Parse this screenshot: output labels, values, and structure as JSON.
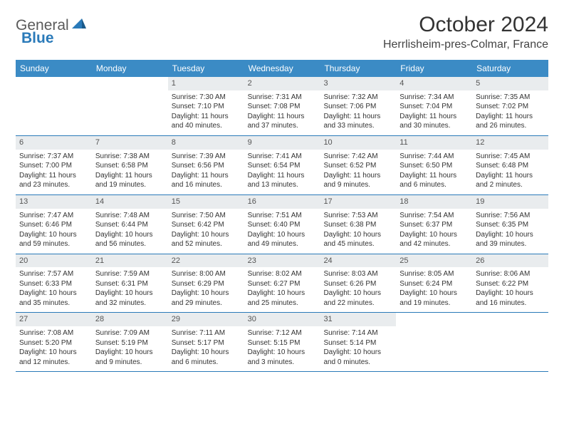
{
  "brand": {
    "part1": "General",
    "part2": "Blue"
  },
  "title": "October 2024",
  "location": "Herrlisheim-pres-Colmar, France",
  "weekdays": [
    "Sunday",
    "Monday",
    "Tuesday",
    "Wednesday",
    "Thursday",
    "Friday",
    "Saturday"
  ],
  "colors": {
    "header_bg": "#3b8bc5",
    "week_divider": "#2a7ab9",
    "daynum_bg": "#e9ecee",
    "text": "#333333"
  },
  "typography": {
    "title_fontsize": 30,
    "location_fontsize": 16,
    "weekday_fontsize": 12,
    "cell_fontsize": 10
  },
  "weeks": [
    [
      {
        "empty": true
      },
      {
        "empty": true
      },
      {
        "day": "1",
        "sunrise": "Sunrise: 7:30 AM",
        "sunset": "Sunset: 7:10 PM",
        "daylight1": "Daylight: 11 hours",
        "daylight2": "and 40 minutes."
      },
      {
        "day": "2",
        "sunrise": "Sunrise: 7:31 AM",
        "sunset": "Sunset: 7:08 PM",
        "daylight1": "Daylight: 11 hours",
        "daylight2": "and 37 minutes."
      },
      {
        "day": "3",
        "sunrise": "Sunrise: 7:32 AM",
        "sunset": "Sunset: 7:06 PM",
        "daylight1": "Daylight: 11 hours",
        "daylight2": "and 33 minutes."
      },
      {
        "day": "4",
        "sunrise": "Sunrise: 7:34 AM",
        "sunset": "Sunset: 7:04 PM",
        "daylight1": "Daylight: 11 hours",
        "daylight2": "and 30 minutes."
      },
      {
        "day": "5",
        "sunrise": "Sunrise: 7:35 AM",
        "sunset": "Sunset: 7:02 PM",
        "daylight1": "Daylight: 11 hours",
        "daylight2": "and 26 minutes."
      }
    ],
    [
      {
        "day": "6",
        "sunrise": "Sunrise: 7:37 AM",
        "sunset": "Sunset: 7:00 PM",
        "daylight1": "Daylight: 11 hours",
        "daylight2": "and 23 minutes."
      },
      {
        "day": "7",
        "sunrise": "Sunrise: 7:38 AM",
        "sunset": "Sunset: 6:58 PM",
        "daylight1": "Daylight: 11 hours",
        "daylight2": "and 19 minutes."
      },
      {
        "day": "8",
        "sunrise": "Sunrise: 7:39 AM",
        "sunset": "Sunset: 6:56 PM",
        "daylight1": "Daylight: 11 hours",
        "daylight2": "and 16 minutes."
      },
      {
        "day": "9",
        "sunrise": "Sunrise: 7:41 AM",
        "sunset": "Sunset: 6:54 PM",
        "daylight1": "Daylight: 11 hours",
        "daylight2": "and 13 minutes."
      },
      {
        "day": "10",
        "sunrise": "Sunrise: 7:42 AM",
        "sunset": "Sunset: 6:52 PM",
        "daylight1": "Daylight: 11 hours",
        "daylight2": "and 9 minutes."
      },
      {
        "day": "11",
        "sunrise": "Sunrise: 7:44 AM",
        "sunset": "Sunset: 6:50 PM",
        "daylight1": "Daylight: 11 hours",
        "daylight2": "and 6 minutes."
      },
      {
        "day": "12",
        "sunrise": "Sunrise: 7:45 AM",
        "sunset": "Sunset: 6:48 PM",
        "daylight1": "Daylight: 11 hours",
        "daylight2": "and 2 minutes."
      }
    ],
    [
      {
        "day": "13",
        "sunrise": "Sunrise: 7:47 AM",
        "sunset": "Sunset: 6:46 PM",
        "daylight1": "Daylight: 10 hours",
        "daylight2": "and 59 minutes."
      },
      {
        "day": "14",
        "sunrise": "Sunrise: 7:48 AM",
        "sunset": "Sunset: 6:44 PM",
        "daylight1": "Daylight: 10 hours",
        "daylight2": "and 56 minutes."
      },
      {
        "day": "15",
        "sunrise": "Sunrise: 7:50 AM",
        "sunset": "Sunset: 6:42 PM",
        "daylight1": "Daylight: 10 hours",
        "daylight2": "and 52 minutes."
      },
      {
        "day": "16",
        "sunrise": "Sunrise: 7:51 AM",
        "sunset": "Sunset: 6:40 PM",
        "daylight1": "Daylight: 10 hours",
        "daylight2": "and 49 minutes."
      },
      {
        "day": "17",
        "sunrise": "Sunrise: 7:53 AM",
        "sunset": "Sunset: 6:38 PM",
        "daylight1": "Daylight: 10 hours",
        "daylight2": "and 45 minutes."
      },
      {
        "day": "18",
        "sunrise": "Sunrise: 7:54 AM",
        "sunset": "Sunset: 6:37 PM",
        "daylight1": "Daylight: 10 hours",
        "daylight2": "and 42 minutes."
      },
      {
        "day": "19",
        "sunrise": "Sunrise: 7:56 AM",
        "sunset": "Sunset: 6:35 PM",
        "daylight1": "Daylight: 10 hours",
        "daylight2": "and 39 minutes."
      }
    ],
    [
      {
        "day": "20",
        "sunrise": "Sunrise: 7:57 AM",
        "sunset": "Sunset: 6:33 PM",
        "daylight1": "Daylight: 10 hours",
        "daylight2": "and 35 minutes."
      },
      {
        "day": "21",
        "sunrise": "Sunrise: 7:59 AM",
        "sunset": "Sunset: 6:31 PM",
        "daylight1": "Daylight: 10 hours",
        "daylight2": "and 32 minutes."
      },
      {
        "day": "22",
        "sunrise": "Sunrise: 8:00 AM",
        "sunset": "Sunset: 6:29 PM",
        "daylight1": "Daylight: 10 hours",
        "daylight2": "and 29 minutes."
      },
      {
        "day": "23",
        "sunrise": "Sunrise: 8:02 AM",
        "sunset": "Sunset: 6:27 PM",
        "daylight1": "Daylight: 10 hours",
        "daylight2": "and 25 minutes."
      },
      {
        "day": "24",
        "sunrise": "Sunrise: 8:03 AM",
        "sunset": "Sunset: 6:26 PM",
        "daylight1": "Daylight: 10 hours",
        "daylight2": "and 22 minutes."
      },
      {
        "day": "25",
        "sunrise": "Sunrise: 8:05 AM",
        "sunset": "Sunset: 6:24 PM",
        "daylight1": "Daylight: 10 hours",
        "daylight2": "and 19 minutes."
      },
      {
        "day": "26",
        "sunrise": "Sunrise: 8:06 AM",
        "sunset": "Sunset: 6:22 PM",
        "daylight1": "Daylight: 10 hours",
        "daylight2": "and 16 minutes."
      }
    ],
    [
      {
        "day": "27",
        "sunrise": "Sunrise: 7:08 AM",
        "sunset": "Sunset: 5:20 PM",
        "daylight1": "Daylight: 10 hours",
        "daylight2": "and 12 minutes."
      },
      {
        "day": "28",
        "sunrise": "Sunrise: 7:09 AM",
        "sunset": "Sunset: 5:19 PM",
        "daylight1": "Daylight: 10 hours",
        "daylight2": "and 9 minutes."
      },
      {
        "day": "29",
        "sunrise": "Sunrise: 7:11 AM",
        "sunset": "Sunset: 5:17 PM",
        "daylight1": "Daylight: 10 hours",
        "daylight2": "and 6 minutes."
      },
      {
        "day": "30",
        "sunrise": "Sunrise: 7:12 AM",
        "sunset": "Sunset: 5:15 PM",
        "daylight1": "Daylight: 10 hours",
        "daylight2": "and 3 minutes."
      },
      {
        "day": "31",
        "sunrise": "Sunrise: 7:14 AM",
        "sunset": "Sunset: 5:14 PM",
        "daylight1": "Daylight: 10 hours",
        "daylight2": "and 0 minutes."
      },
      {
        "empty": true
      },
      {
        "empty": true
      }
    ]
  ]
}
